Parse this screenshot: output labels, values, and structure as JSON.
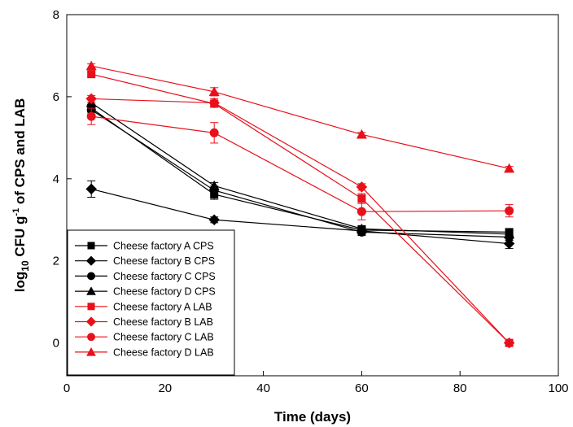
{
  "chart_data": {
    "type": "line",
    "title": "",
    "xlabel": "Time (days)",
    "ylabel_main": "log",
    "ylabel_sub": "10",
    "ylabel_mid": " CFU g",
    "ylabel_sup": "-1",
    "ylabel_end": " of CPS and LAB",
    "xlim": [
      0,
      100
    ],
    "ylim": [
      -0.8,
      8
    ],
    "xticks": [
      0,
      20,
      40,
      60,
      80,
      100
    ],
    "yticks": [
      0,
      2,
      4,
      6,
      8
    ],
    "grid": false,
    "legend_position": "bottom-left",
    "x": [
      5,
      30,
      60,
      90
    ],
    "series": [
      {
        "name": "Cheese factory A CPS",
        "color": "#000000",
        "marker": "square",
        "values": [
          5.72,
          3.62,
          2.75,
          2.7
        ],
        "errors": [
          0.1,
          0.12,
          0.1,
          0.08
        ]
      },
      {
        "name": "Cheese factory B CPS",
        "color": "#000000",
        "marker": "diamond",
        "values": [
          3.75,
          3.0,
          2.73,
          2.42
        ],
        "errors": [
          0.2,
          0.07,
          0.08,
          0.12
        ]
      },
      {
        "name": "Cheese factory C CPS",
        "color": "#000000",
        "marker": "circle",
        "values": [
          5.68,
          3.72,
          2.7,
          2.58
        ],
        "errors": [
          0.1,
          0.1,
          0.08,
          0.08
        ]
      },
      {
        "name": "Cheese factory D CPS",
        "color": "#000000",
        "marker": "triangle",
        "values": [
          5.85,
          3.83,
          2.78,
          2.65
        ],
        "errors": [
          0.1,
          0.08,
          0.08,
          0.08
        ]
      },
      {
        "name": "Cheese factory A LAB",
        "color": "#e8101a",
        "marker": "square",
        "values": [
          6.55,
          5.83,
          3.52,
          0.0
        ],
        "errors": [
          0.05,
          0.08,
          0.12,
          0.0
        ]
      },
      {
        "name": "Cheese factory B LAB",
        "color": "#e8101a",
        "marker": "diamond",
        "values": [
          5.95,
          5.85,
          3.8,
          0.0
        ],
        "errors": [
          0.08,
          0.1,
          0.08,
          0.0
        ]
      },
      {
        "name": "Cheese factory C LAB",
        "color": "#e8101a",
        "marker": "circle",
        "values": [
          5.52,
          5.12,
          3.2,
          3.22
        ],
        "errors": [
          0.2,
          0.25,
          0.2,
          0.15
        ]
      },
      {
        "name": "Cheese factory D LAB",
        "color": "#e8101a",
        "marker": "triangle",
        "values": [
          6.75,
          6.12,
          5.08,
          4.25
        ],
        "errors": [
          0.05,
          0.1,
          0.05,
          0.05
        ]
      }
    ]
  }
}
